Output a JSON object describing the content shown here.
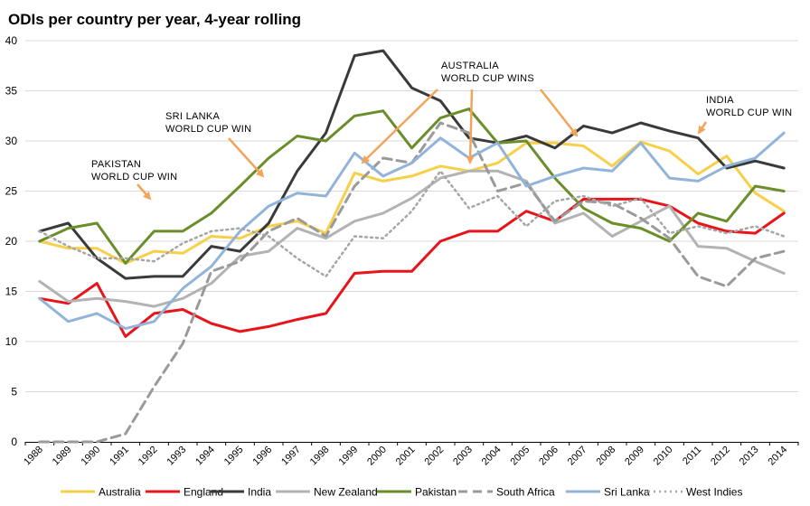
{
  "chart_data": {
    "type": "line",
    "title": "ODIs per country per year, 4-year rolling",
    "xlabel": "",
    "ylabel": "",
    "ylim": [
      0,
      40
    ],
    "yticks": [
      0,
      5,
      10,
      15,
      20,
      25,
      30,
      35,
      40
    ],
    "grid": true,
    "legend_position": "bottom",
    "categories": [
      "1988",
      "1989",
      "1990",
      "1991",
      "1992",
      "1993",
      "1994",
      "1995",
      "1996",
      "1997",
      "1998",
      "1999",
      "2000",
      "2001",
      "2002",
      "2003",
      "2004",
      "2005",
      "2006",
      "2007",
      "2008",
      "2009",
      "2010",
      "2011",
      "2012",
      "2013",
      "2014"
    ],
    "series": [
      {
        "name": "Australia",
        "color": "#f7d04b",
        "dash": "solid",
        "width": 3,
        "values": [
          20.0,
          19.3,
          19.3,
          17.8,
          19.0,
          18.8,
          20.5,
          20.3,
          21.5,
          22.0,
          20.8,
          26.8,
          26.0,
          26.5,
          27.5,
          27.0,
          27.8,
          29.8,
          29.8,
          29.5,
          27.5,
          29.9,
          29.0,
          26.7,
          28.5,
          24.8,
          23.0
        ]
      },
      {
        "name": "England",
        "color": "#e8141b",
        "dash": "solid",
        "width": 3,
        "values": [
          14.3,
          13.8,
          15.8,
          10.5,
          12.8,
          13.2,
          11.8,
          11.0,
          11.5,
          12.2,
          12.8,
          16.8,
          17.0,
          17.0,
          20.0,
          21.0,
          21.0,
          23.0,
          22.0,
          24.2,
          24.2,
          24.2,
          23.5,
          21.8,
          21.0,
          20.8,
          22.8
        ]
      },
      {
        "name": "India",
        "color": "#3a3a3a",
        "dash": "solid",
        "width": 3,
        "values": [
          21.0,
          21.8,
          18.3,
          16.3,
          16.5,
          16.5,
          19.5,
          19.0,
          21.8,
          27.0,
          30.8,
          38.5,
          39.0,
          35.3,
          34.0,
          30.3,
          29.8,
          30.5,
          29.3,
          31.5,
          30.8,
          31.8,
          31.0,
          30.3,
          27.3,
          28.0,
          27.3
        ]
      },
      {
        "name": "New Zealand",
        "color": "#b3b3b3",
        "dash": "solid",
        "width": 3,
        "values": [
          16.0,
          14.0,
          14.3,
          14.0,
          13.5,
          14.3,
          15.8,
          18.5,
          19.0,
          21.3,
          20.3,
          22.0,
          22.8,
          24.3,
          26.3,
          27.0,
          27.0,
          26.0,
          21.8,
          22.8,
          20.5,
          22.0,
          23.5,
          19.5,
          19.3,
          18.0,
          16.8
        ]
      },
      {
        "name": "Pakistan",
        "color": "#6b8e2b",
        "dash": "solid",
        "width": 3,
        "values": [
          20.0,
          21.3,
          21.8,
          17.8,
          21.0,
          21.0,
          22.8,
          25.5,
          28.3,
          30.5,
          30.0,
          32.5,
          33.0,
          29.3,
          32.3,
          33.2,
          29.8,
          30.0,
          26.3,
          23.3,
          21.8,
          21.3,
          20.0,
          22.8,
          22.0,
          25.5,
          25.0
        ]
      },
      {
        "name": "South Africa",
        "color": "#9a9a9a",
        "dash": "dashed",
        "width": 3,
        "values": [
          0.0,
          0.0,
          0.0,
          0.8,
          5.5,
          9.8,
          17.0,
          18.0,
          21.0,
          22.3,
          20.5,
          25.5,
          28.3,
          27.8,
          31.8,
          30.8,
          25.0,
          25.8,
          22.0,
          24.0,
          23.8,
          22.3,
          20.3,
          16.5,
          15.5,
          18.3,
          19.0
        ]
      },
      {
        "name": "Sri Lanka",
        "color": "#93b4d9",
        "dash": "solid",
        "width": 3,
        "values": [
          14.3,
          12.0,
          12.8,
          11.3,
          12.0,
          15.3,
          17.5,
          21.0,
          23.5,
          24.8,
          24.5,
          28.8,
          26.5,
          27.8,
          30.3,
          28.3,
          29.8,
          25.5,
          26.5,
          27.3,
          27.0,
          29.8,
          26.3,
          26.0,
          27.5,
          28.3,
          30.8
        ]
      },
      {
        "name": "West Indies",
        "color": "#a6a6a6",
        "dash": "dotted",
        "width": 2.5,
        "values": [
          21.0,
          19.5,
          18.3,
          18.3,
          18.0,
          19.8,
          21.0,
          21.3,
          20.5,
          18.3,
          16.5,
          20.5,
          20.3,
          23.0,
          27.0,
          23.3,
          24.5,
          21.5,
          24.0,
          24.5,
          23.5,
          24.3,
          20.8,
          21.5,
          20.8,
          21.5,
          20.5
        ]
      }
    ],
    "annotations": [
      {
        "id": "pakistan",
        "lines": [
          "PAKISTAN",
          "WORLD CUP WIN"
        ],
        "year": 1992
      },
      {
        "id": "srilanka",
        "lines": [
          "SRI LANKA",
          "WORLD CUP WIN"
        ],
        "year": 1996
      },
      {
        "id": "australia",
        "lines": [
          "AUSTRALIA",
          "WORLD CUP WINS"
        ],
        "years": [
          1999,
          2003,
          2007
        ]
      },
      {
        "id": "india",
        "lines": [
          "INDIA",
          "WORLD CUP WIN"
        ],
        "year": 2011
      }
    ]
  }
}
